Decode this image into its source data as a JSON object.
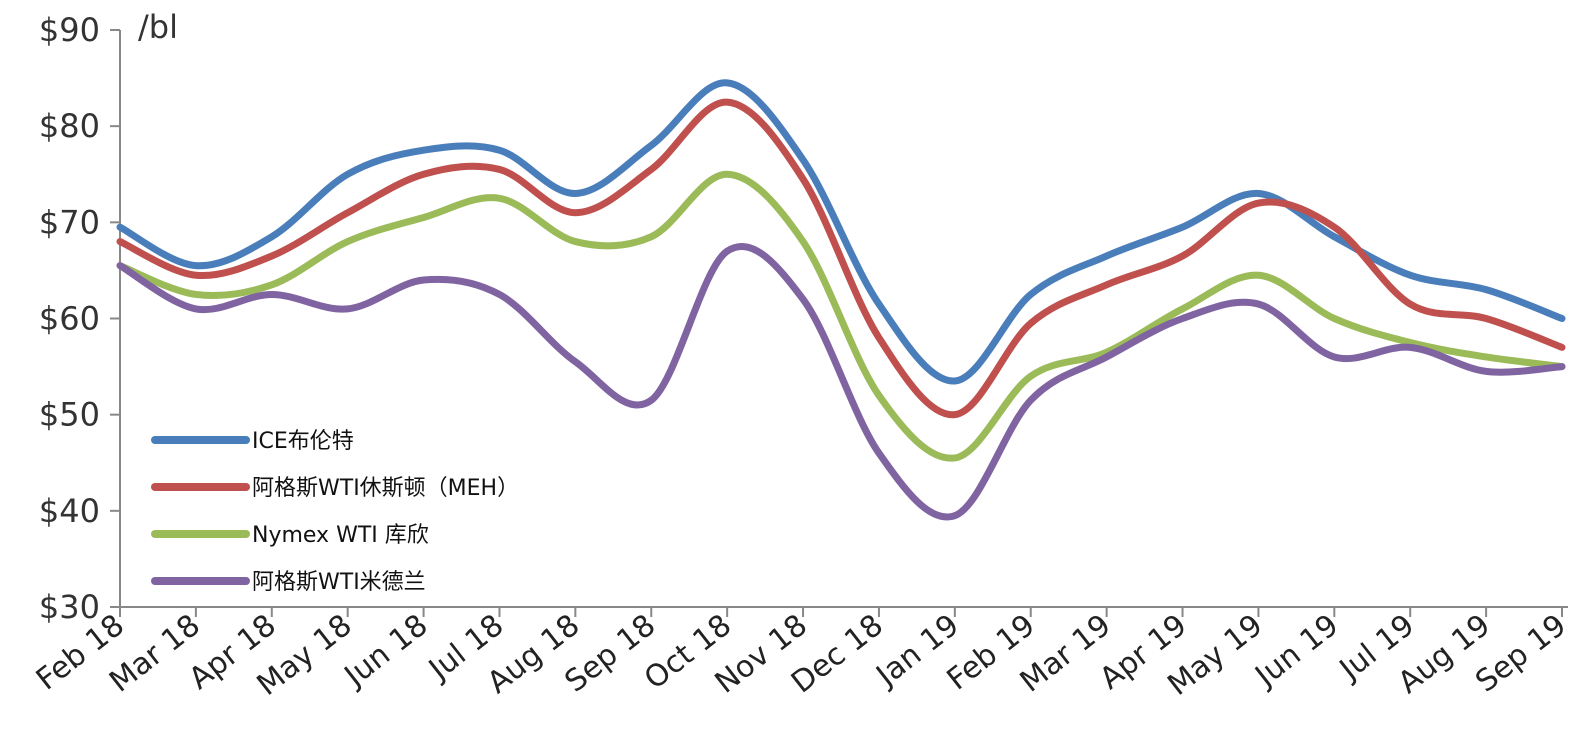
{
  "chart_data": {
    "type": "line",
    "ylabel": "/bl",
    "y_tick_labels": [
      "$30",
      "$40",
      "$50",
      "$60",
      "$70",
      "$80",
      "$90"
    ],
    "ylim": [
      30,
      90
    ],
    "x": [
      "Feb 18",
      "Mar 18",
      "Apr 18",
      "May 18",
      "Jun 18",
      "Jul 18",
      "Aug 18",
      "Sep 18",
      "Oct 18",
      "Nov 18",
      "Dec 18",
      "Jan 19",
      "Feb 19",
      "Mar 19",
      "Apr 19",
      "May 19",
      "Jun 19",
      "Jul 19",
      "Aug 19",
      "Sep 19"
    ],
    "legend_position": "lower-left",
    "grid": false,
    "series": [
      {
        "name": "ICE布伦特",
        "color": "#4a7ebb",
        "values": [
          69.5,
          65.5,
          68.5,
          75.0,
          77.5,
          77.5,
          73.0,
          78.0,
          84.5,
          76.5,
          61.5,
          53.5,
          62.5,
          66.5,
          69.5,
          73.0,
          68.5,
          64.5,
          63.0,
          60.0
        ]
      },
      {
        "name": "阿格斯WTI休斯顿（MEH）",
        "color": "#c0504d",
        "values": [
          68.0,
          64.5,
          66.5,
          71.0,
          75.0,
          75.5,
          71.0,
          75.5,
          82.5,
          74.5,
          58.0,
          50.0,
          59.5,
          63.5,
          66.5,
          72.0,
          69.5,
          61.5,
          60.0,
          57.0
        ]
      },
      {
        "name": "Nymex WTI 库欣",
        "color": "#9bbb59",
        "values": [
          65.5,
          62.5,
          63.5,
          68.0,
          70.5,
          72.5,
          68.0,
          68.5,
          75.0,
          68.0,
          52.0,
          45.5,
          54.0,
          56.5,
          61.0,
          64.5,
          60.0,
          57.5,
          56.0,
          55.0
        ]
      },
      {
        "name": "阿格斯WTI米德兰",
        "color": "#8064a2",
        "values": [
          65.5,
          61.0,
          62.5,
          61.0,
          64.0,
          62.5,
          55.5,
          51.5,
          67.0,
          62.0,
          46.0,
          39.5,
          51.5,
          56.0,
          60.0,
          61.5,
          56.0,
          57.0,
          54.5,
          55.0
        ]
      }
    ]
  }
}
